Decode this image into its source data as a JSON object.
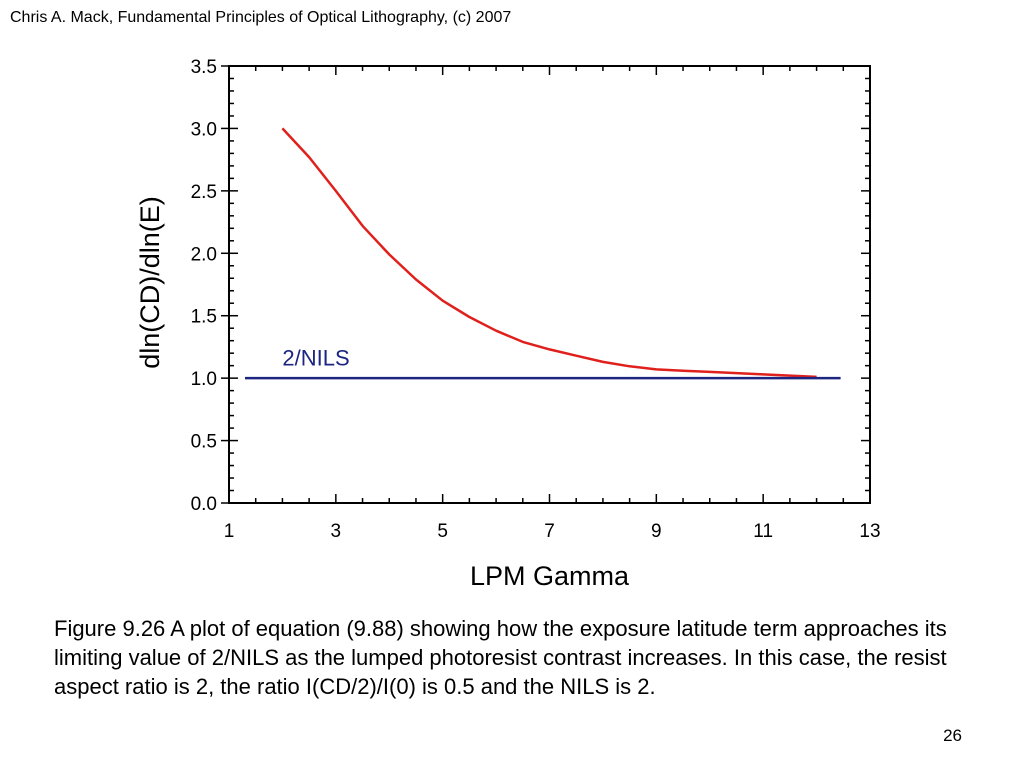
{
  "header": {
    "text": "Chris A. Mack, Fundamental Principles of Optical Lithography, (c) 2007"
  },
  "chart_data": {
    "type": "line",
    "title": "",
    "xlabel": "LPM Gamma",
    "ylabel": "dln(CD)/dln(E)",
    "xlim": [
      1,
      13
    ],
    "ylim": [
      0,
      3.5
    ],
    "xticks": [
      "1",
      "3",
      "5",
      "7",
      "9",
      "11",
      "13"
    ],
    "yticks": [
      "0.0",
      "0.5",
      "1.0",
      "1.5",
      "2.0",
      "2.5",
      "3.0",
      "3.5"
    ],
    "grid": false,
    "series": [
      {
        "name": "",
        "color": "#e0201c",
        "x": [
          2.0,
          2.5,
          3.0,
          3.5,
          4.0,
          4.5,
          5.0,
          5.5,
          6.0,
          6.5,
          7.0,
          7.5,
          8.0,
          8.5,
          9.0,
          9.5,
          10.0,
          10.5,
          11.0,
          11.5,
          12.0
        ],
        "y": [
          3.0,
          2.77,
          2.5,
          2.22,
          1.99,
          1.79,
          1.62,
          1.49,
          1.38,
          1.29,
          1.23,
          1.18,
          1.13,
          1.095,
          1.07,
          1.06,
          1.05,
          1.04,
          1.03,
          1.02,
          1.01
        ]
      },
      {
        "name": "2/NILS",
        "color": "#1c2580",
        "x": [
          1.3,
          12.45
        ],
        "y": [
          1.0,
          1.0
        ]
      }
    ],
    "annotations": [
      {
        "text": "2/NILS",
        "x": 2.0,
        "y": 1.1
      }
    ]
  },
  "caption": "Figure 9.26  A plot of equation (9.88) showing how the exposure latitude term approaches its limiting value of 2/NILS as the lumped photoresist contrast increases.  In this case, the resist aspect ratio is 2, the ratio I(CD/2)/I(0) is 0.5 and the NILS is 2.",
  "page_number": "26"
}
